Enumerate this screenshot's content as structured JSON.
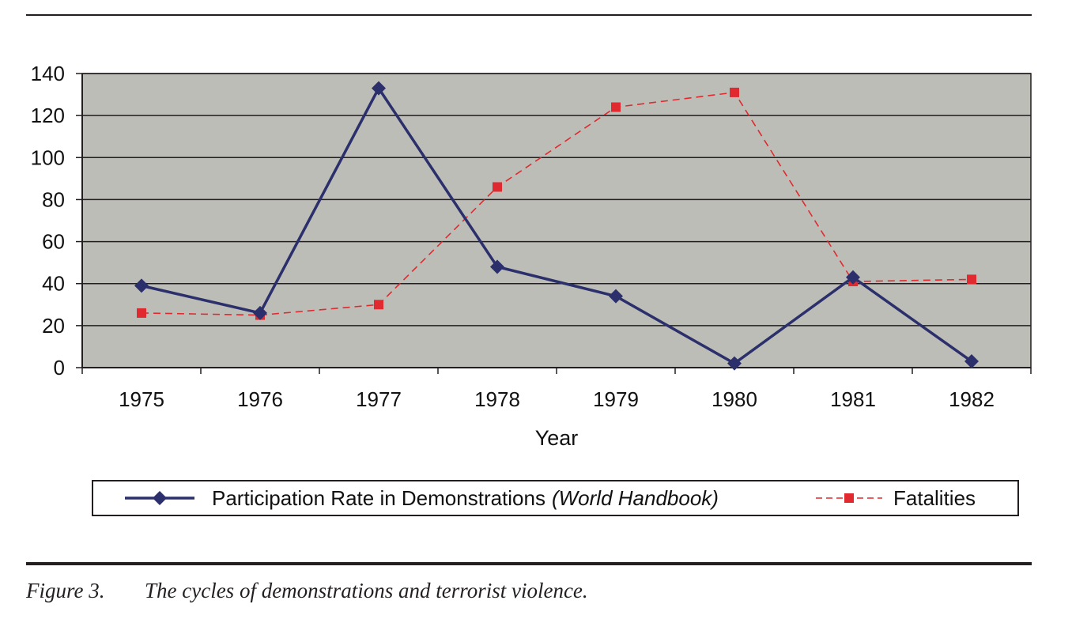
{
  "chart_data": {
    "type": "line",
    "x": [
      "1975",
      "1976",
      "1977",
      "1978",
      "1979",
      "1980",
      "1981",
      "1982"
    ],
    "xlabel": "Year",
    "ylabel": "",
    "ylim": [
      0,
      140
    ],
    "yticks": [
      "0",
      "20",
      "40",
      "60",
      "80",
      "100",
      "120",
      "140"
    ],
    "grid": "horizontal",
    "series": [
      {
        "name": "Participation Rate in Demonstrations",
        "name_suffix": "(World Handbook)",
        "values": [
          39,
          26,
          133,
          48,
          34,
          2,
          43,
          3
        ],
        "color": "#2b2f6b",
        "marker": "diamond",
        "line_style": "solid"
      },
      {
        "name": "Fatalities",
        "values": [
          26,
          25,
          30,
          86,
          124,
          131,
          41,
          42
        ],
        "color": "#e02a2f",
        "marker": "square",
        "line_style": "dashed"
      }
    ],
    "plot_background": "#bdbdb7",
    "legend_position": "bottom"
  },
  "caption": {
    "label": "Figure 3.",
    "text": "The cycles of demonstrations and terrorist violence."
  }
}
